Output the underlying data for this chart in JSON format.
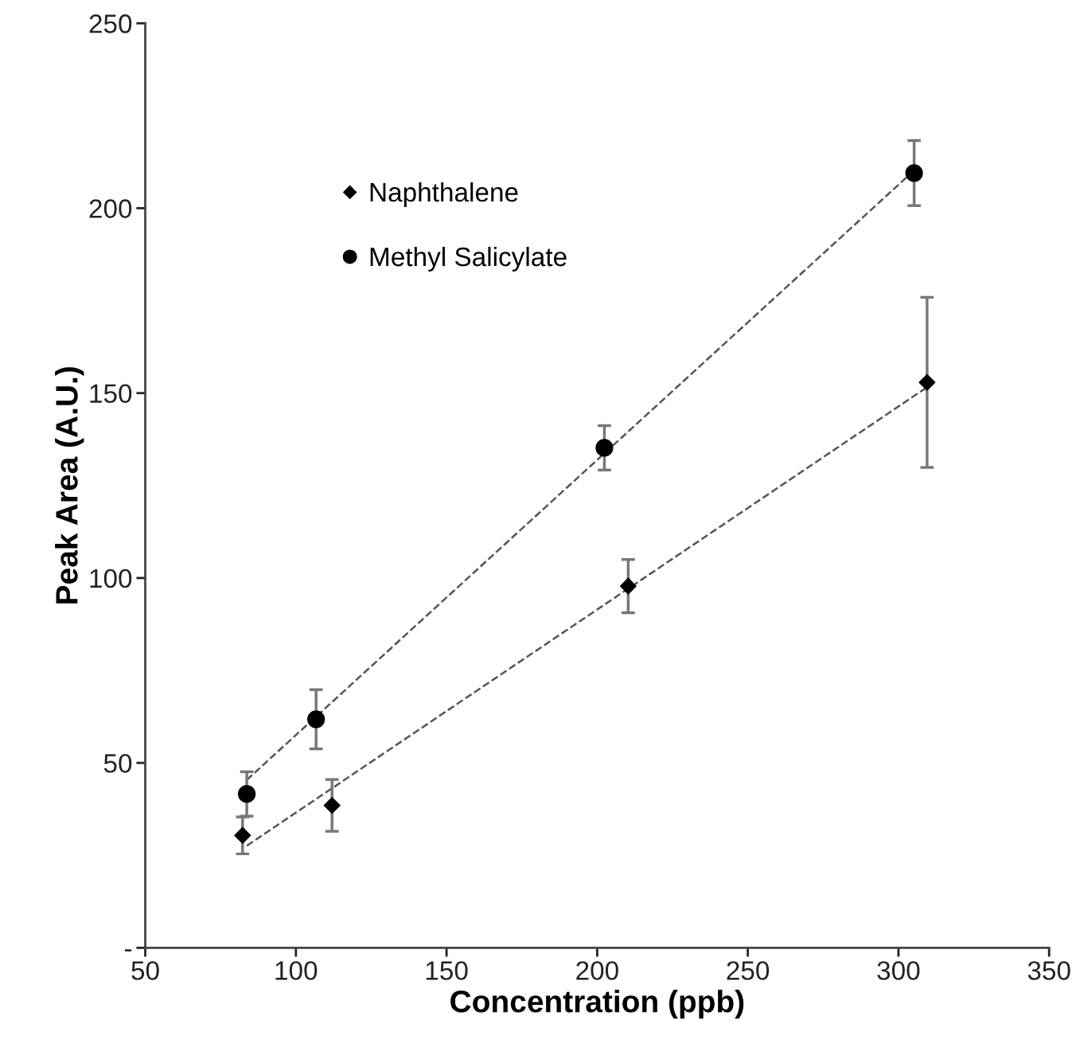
{
  "chart_data": {
    "type": "scatter",
    "xlabel": "Concentration (ppb)",
    "ylabel": "Peak Area (A.U.)",
    "xlim": [
      50,
      350
    ],
    "xticks": [
      50,
      100,
      150,
      200,
      250,
      300,
      350
    ],
    "ylim": [
      0,
      250
    ],
    "yticks": [
      {
        "value": 0,
        "label": "-"
      },
      50,
      100,
      150,
      200,
      250
    ],
    "grid": false,
    "legend": "top left",
    "series": [
      {
        "name": "Naphthalene",
        "marker": "diamond",
        "color": "#000000",
        "x": [
          82.3,
          112,
          210.3,
          309.5
        ],
        "values": [
          30.4,
          38.5,
          97.8,
          152.9
        ],
        "errors": [
          5,
          7,
          7.2,
          23
        ]
      },
      {
        "name": "Methyl Salicylate",
        "marker": "circle",
        "color": "#000000",
        "x": [
          83.7,
          106.7,
          202.4,
          305.2
        ],
        "values": [
          41.6,
          61.8,
          135.2,
          209.5
        ],
        "errors": [
          6,
          8,
          6,
          8.8
        ]
      },
      {
        "type": "line",
        "line_style": "dashed",
        "color": "#555555",
        "x": [
          83.7,
          309.5
        ],
        "values": [
          27.6,
          151.6
        ]
      },
      {
        "type": "line",
        "line_style": "dashed",
        "color": "#555555",
        "x": [
          83.7,
          305.2
        ],
        "values": [
          45.4,
          210.2
        ]
      }
    ]
  }
}
